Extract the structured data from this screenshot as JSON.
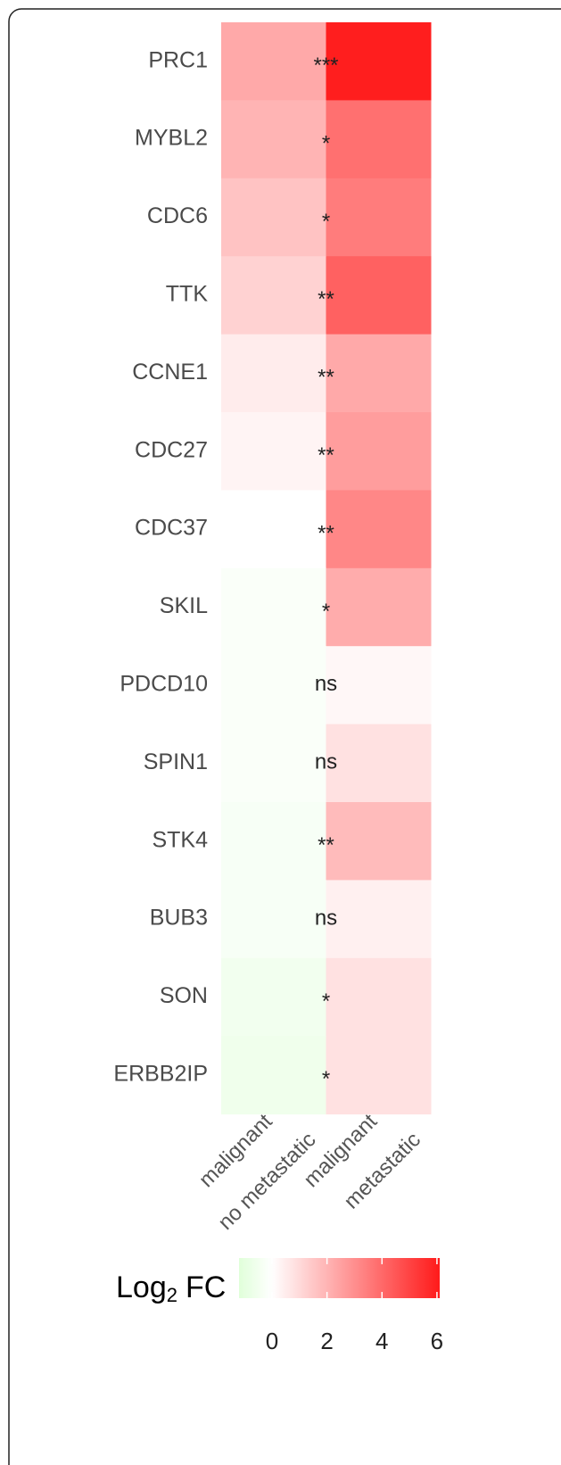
{
  "chart_data": {
    "type": "heatmap",
    "rows": [
      "PRC1",
      "MYBL2",
      "CDC6",
      "TTK",
      "CCNE1",
      "CDC27",
      "CDC37",
      "SKIL",
      "PDCD10",
      "SPIN1",
      "STK4",
      "BUB3",
      "SON",
      "ERBB2IP"
    ],
    "columns": [
      [
        "malignant",
        "no metastatic"
      ],
      [
        "malignant",
        "metastatic"
      ]
    ],
    "values": [
      [
        2.3,
        6.0
      ],
      [
        2.0,
        3.8
      ],
      [
        1.6,
        3.5
      ],
      [
        1.2,
        4.2
      ],
      [
        0.5,
        2.3
      ],
      [
        0.3,
        2.6
      ],
      [
        0.0,
        3.2
      ],
      [
        -0.2,
        2.2
      ],
      [
        -0.2,
        0.2
      ],
      [
        -0.2,
        0.8
      ],
      [
        -0.3,
        1.8
      ],
      [
        -0.3,
        0.4
      ],
      [
        -0.5,
        0.8
      ],
      [
        -0.6,
        0.8
      ]
    ],
    "annotations": [
      "***",
      "*",
      "*",
      "**",
      "**",
      "**",
      "**",
      "*",
      "ns",
      "ns",
      "**",
      "ns",
      "*",
      "*"
    ],
    "colorbar_title": [
      "Log",
      "2",
      "FC"
    ],
    "clim": [
      -1.2,
      6.1
    ],
    "center": 0,
    "colors": [
      "#e0ffd9",
      "#ffffff",
      "#ff1a1a"
    ],
    "cticks": [
      0,
      2,
      4,
      6
    ]
  }
}
